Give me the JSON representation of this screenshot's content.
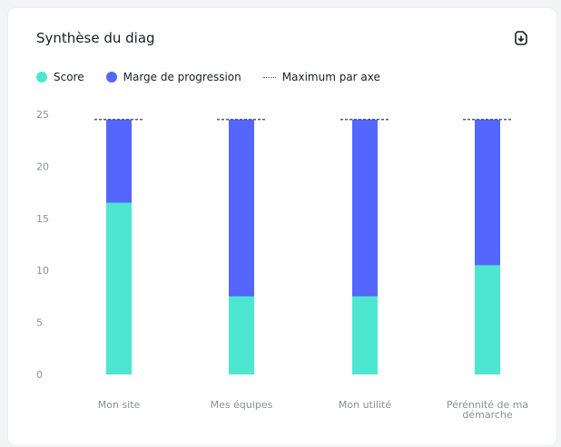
{
  "card": {
    "title": "Synthèse du diag",
    "export_icon": "download-file-icon"
  },
  "colors": {
    "score": "#4de6d1",
    "margin": "#5566ff",
    "max_line": "#555b6a"
  },
  "chart_data": {
    "type": "bar",
    "stacked": true,
    "title": "Synthèse du diag",
    "categories": [
      "Mon site",
      "Mes équipes",
      "Mon utilité",
      "Pérénnité de ma démarche"
    ],
    "category_lines": [
      [
        "Mon site"
      ],
      [
        "Mes équipes"
      ],
      [
        "Mon utilité"
      ],
      [
        "Pérénnité de ma",
        "démarche"
      ]
    ],
    "series": [
      {
        "name": "Score",
        "values": [
          16.5,
          7.5,
          7.5,
          10.5
        ]
      },
      {
        "name": "Marge de progression",
        "values": [
          8,
          17,
          17,
          14
        ]
      }
    ],
    "max_per_axis": {
      "name": "Maximum par axe",
      "values": [
        24.5,
        24.5,
        24.5,
        24.5
      ]
    },
    "yticks": [
      "25",
      "20",
      "15",
      "10",
      "5",
      "0"
    ],
    "ytick_values": [
      25,
      20,
      15,
      10,
      5,
      0
    ],
    "ylim": [
      0,
      25
    ],
    "grid": false,
    "legend_position": "top-left",
    "xlabel": "",
    "ylabel": ""
  }
}
